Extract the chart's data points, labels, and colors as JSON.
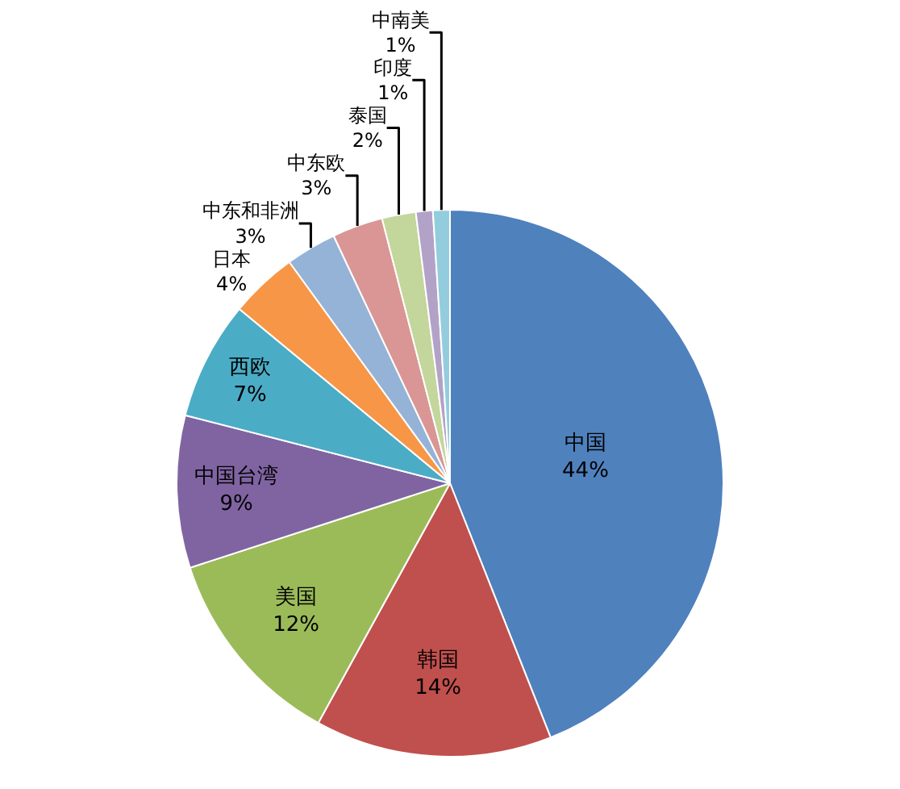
{
  "chart_data": {
    "type": "pie",
    "categories": [
      "中国",
      "韩国",
      "美国",
      "中国台湾",
      "西欧",
      "日本",
      "中东和非洲",
      "中东欧",
      "泰国",
      "印度",
      "中南美"
    ],
    "values": [
      44,
      14,
      12,
      9,
      7,
      4,
      3,
      3,
      2,
      1,
      1
    ],
    "value_labels": [
      "44%",
      "14%",
      "12%",
      "9%",
      "7%",
      "4%",
      "3%",
      "3%",
      "2%",
      "1%",
      "1%"
    ],
    "colors": [
      "#4f81bd",
      "#c0504d",
      "#9bbb59",
      "#8064a2",
      "#4bacc6",
      "#f79646",
      "#95b3d7",
      "#d99694",
      "#c3d69b",
      "#b3a2c7",
      "#93cddd"
    ],
    "legend": false
  }
}
